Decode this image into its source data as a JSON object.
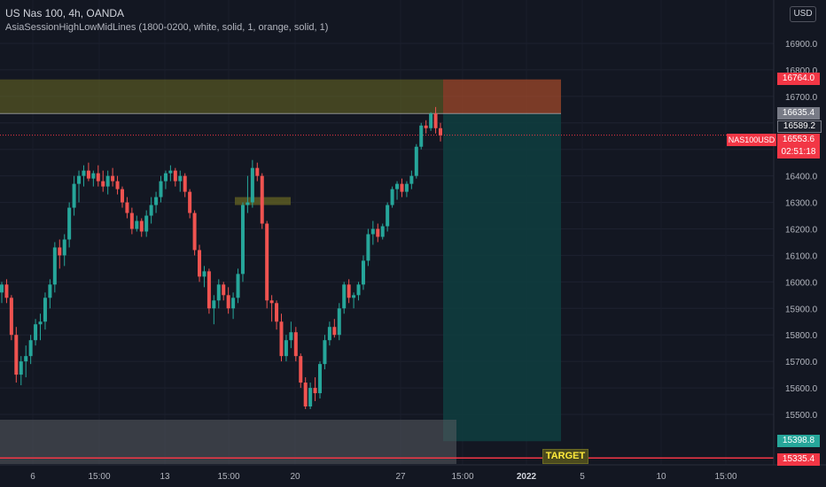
{
  "header": {
    "title": "US Nas 100, 4h, OANDA",
    "indicator": "AsiaSessionHighLowMidLines (1800-0200, white, solid, 1, orange, solid, 1)",
    "currency": "USD"
  },
  "price_labels": {
    "zone_top": "16764.0",
    "last_high": "16635.4",
    "prev": "16589.2",
    "current": "16553.6",
    "countdown": "02:51:18",
    "symbol": "NAS100USD",
    "tp": "15398.8",
    "target_line": "15335.4"
  },
  "target_label": "TARGET",
  "colors": {
    "bg": "#131722",
    "up": "#26a69a",
    "down": "#ef5350",
    "zone_yellow": "#6b6a22",
    "zone_red": "#c1532b",
    "teal_zone": "#0f3e40",
    "gray_zone": "#5a5c63",
    "red_line": "#f23645"
  },
  "chart_data": {
    "type": "candlestick",
    "title": "US Nas 100, 4h, OANDA",
    "ylim": [
      15380,
      17020
    ],
    "y_ticks": [
      16900,
      16800,
      16700,
      16600,
      16500,
      16400,
      16300,
      16200,
      16100,
      16000,
      15900,
      15800,
      15700,
      15600,
      15500
    ],
    "x_tick_labels": [
      "6",
      "15:00",
      "13",
      "15:00",
      "20",
      "27",
      "15:00",
      "2022",
      "5",
      "10",
      "15:00"
    ],
    "candles": [
      [
        15960,
        16000,
        15920,
        15990
      ],
      [
        15990,
        16010,
        15920,
        15940
      ],
      [
        15940,
        15950,
        15780,
        15800
      ],
      [
        15800,
        15830,
        15620,
        15650
      ],
      [
        15650,
        15720,
        15610,
        15700
      ],
      [
        15700,
        15760,
        15640,
        15720
      ],
      [
        15720,
        15800,
        15690,
        15780
      ],
      [
        15780,
        15860,
        15760,
        15840
      ],
      [
        15840,
        15880,
        15780,
        15850
      ],
      [
        15850,
        15960,
        15820,
        15940
      ],
      [
        15940,
        16010,
        15900,
        15990
      ],
      [
        15990,
        16150,
        15960,
        16130
      ],
      [
        16130,
        16160,
        16050,
        16100
      ],
      [
        16100,
        16180,
        16060,
        16160
      ],
      [
        16160,
        16300,
        16130,
        16280
      ],
      [
        16280,
        16400,
        16250,
        16370
      ],
      [
        16370,
        16420,
        16300,
        16400
      ],
      [
        16400,
        16440,
        16360,
        16420
      ],
      [
        16420,
        16450,
        16380,
        16390
      ],
      [
        16390,
        16420,
        16360,
        16410
      ],
      [
        16410,
        16440,
        16360,
        16380
      ],
      [
        16380,
        16420,
        16340,
        16360
      ],
      [
        16360,
        16420,
        16330,
        16400
      ],
      [
        16400,
        16430,
        16360,
        16380
      ],
      [
        16380,
        16400,
        16330,
        16350
      ],
      [
        16350,
        16360,
        16280,
        16300
      ],
      [
        16300,
        16320,
        16240,
        16260
      ],
      [
        16260,
        16280,
        16180,
        16200
      ],
      [
        16200,
        16250,
        16190,
        16230
      ],
      [
        16230,
        16240,
        16170,
        16190
      ],
      [
        16190,
        16270,
        16170,
        16250
      ],
      [
        16250,
        16320,
        16220,
        16290
      ],
      [
        16290,
        16340,
        16260,
        16320
      ],
      [
        16320,
        16400,
        16300,
        16380
      ],
      [
        16380,
        16420,
        16350,
        16410
      ],
      [
        16410,
        16440,
        16380,
        16420
      ],
      [
        16420,
        16430,
        16360,
        16380
      ],
      [
        16380,
        16420,
        16340,
        16400
      ],
      [
        16400,
        16410,
        16320,
        16340
      ],
      [
        16340,
        16350,
        16240,
        16260
      ],
      [
        16260,
        16270,
        16100,
        16120
      ],
      [
        16120,
        16140,
        16000,
        16020
      ],
      [
        16020,
        16060,
        15980,
        16040
      ],
      [
        16040,
        16050,
        15880,
        15900
      ],
      [
        15900,
        15950,
        15840,
        15930
      ],
      [
        15930,
        16010,
        15900,
        15990
      ],
      [
        15990,
        16000,
        15930,
        15950
      ],
      [
        15950,
        15980,
        15880,
        15900
      ],
      [
        15900,
        15960,
        15860,
        15940
      ],
      [
        15940,
        16050,
        15920,
        16030
      ],
      [
        16030,
        16300,
        16000,
        16290
      ],
      [
        16290,
        16400,
        16260,
        16300
      ],
      [
        16300,
        16460,
        16280,
        16430
      ],
      [
        16430,
        16450,
        16380,
        16400
      ],
      [
        16400,
        16410,
        16200,
        16220
      ],
      [
        16220,
        16230,
        15900,
        15930
      ],
      [
        15930,
        15950,
        15850,
        15920
      ],
      [
        15920,
        15930,
        15820,
        15850
      ],
      [
        15850,
        15880,
        15700,
        15720
      ],
      [
        15720,
        15800,
        15700,
        15780
      ],
      [
        15780,
        15850,
        15750,
        15810
      ],
      [
        15810,
        15830,
        15700,
        15720
      ],
      [
        15720,
        15730,
        15600,
        15620
      ],
      [
        15620,
        15640,
        15520,
        15530
      ],
      [
        15530,
        15620,
        15520,
        15600
      ],
      [
        15600,
        15640,
        15550,
        15580
      ],
      [
        15580,
        15700,
        15560,
        15690
      ],
      [
        15690,
        15800,
        15670,
        15780
      ],
      [
        15780,
        15850,
        15760,
        15830
      ],
      [
        15830,
        15860,
        15790,
        15800
      ],
      [
        15800,
        15920,
        15780,
        15900
      ],
      [
        15900,
        16000,
        15880,
        15990
      ],
      [
        15990,
        16010,
        15920,
        15940
      ],
      [
        15940,
        15960,
        15900,
        15950
      ],
      [
        15950,
        16000,
        15930,
        15990
      ],
      [
        15990,
        16100,
        15970,
        16080
      ],
      [
        16080,
        16200,
        16060,
        16180
      ],
      [
        16180,
        16230,
        16140,
        16200
      ],
      [
        16200,
        16220,
        16150,
        16170
      ],
      [
        16170,
        16220,
        16160,
        16210
      ],
      [
        16210,
        16300,
        16190,
        16290
      ],
      [
        16290,
        16360,
        16280,
        16350
      ],
      [
        16350,
        16380,
        16310,
        16370
      ],
      [
        16370,
        16390,
        16320,
        16340
      ],
      [
        16340,
        16380,
        16320,
        16370
      ],
      [
        16370,
        16420,
        16350,
        16400
      ],
      [
        16400,
        16520,
        16390,
        16510
      ],
      [
        16510,
        16600,
        16500,
        16590
      ],
      [
        16590,
        16610,
        16560,
        16580
      ],
      [
        16580,
        16640,
        16570,
        16635
      ],
      [
        16635,
        16660,
        16560,
        16580
      ],
      [
        16580,
        16600,
        16530,
        16553
      ]
    ],
    "zones": {
      "supply": [
        16635,
        16764
      ],
      "stop": [
        16635,
        16764
      ],
      "target_profit": [
        15398.8,
        16635
      ],
      "support": [
        15335,
        15480
      ],
      "small_box": [
        16290,
        16320
      ]
    },
    "lines": {
      "current_price": 16553.6,
      "target": 15335.4,
      "zone_bottom": 16635.4
    }
  }
}
